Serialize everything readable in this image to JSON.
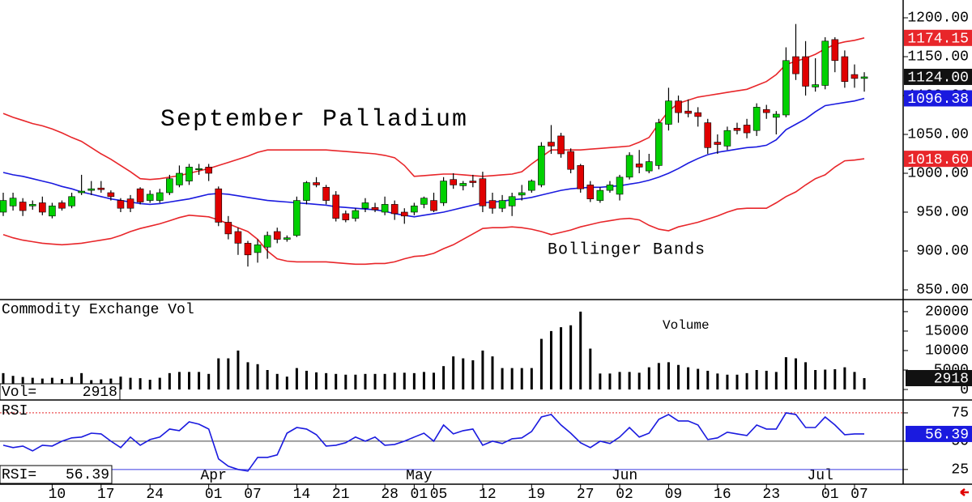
{
  "chart_data": [
    {
      "type": "candlestick",
      "title": "September Palladium",
      "annotation": "Bollinger Bands",
      "categories": [
        null,
        null,
        null,
        null,
        null,
        "10",
        null,
        null,
        null,
        null,
        "17",
        null,
        null,
        null,
        null,
        "24",
        null,
        null,
        null,
        null,
        null,
        "01",
        null,
        null,
        null,
        "07",
        null,
        null,
        null,
        null,
        "14",
        null,
        null,
        null,
        "21",
        null,
        null,
        null,
        null,
        "28",
        null,
        null,
        "01",
        null,
        "05",
        null,
        null,
        null,
        null,
        "12",
        null,
        null,
        null,
        null,
        "19",
        null,
        null,
        null,
        null,
        "27",
        null,
        null,
        null,
        "02",
        null,
        null,
        null,
        null,
        "09",
        null,
        null,
        null,
        null,
        "16",
        null,
        null,
        null,
        null,
        "23",
        null,
        null,
        null,
        null,
        null,
        "01",
        null,
        null,
        "07",
        null
      ],
      "month_labels": [
        null,
        null,
        null,
        null,
        null,
        null,
        null,
        null,
        null,
        null,
        null,
        null,
        null,
        null,
        null,
        null,
        null,
        null,
        null,
        null,
        null,
        "Apr",
        null,
        null,
        null,
        null,
        null,
        null,
        null,
        null,
        null,
        null,
        null,
        null,
        null,
        null,
        null,
        null,
        null,
        null,
        null,
        null,
        "May",
        null,
        null,
        null,
        null,
        null,
        null,
        null,
        null,
        null,
        null,
        null,
        null,
        null,
        null,
        null,
        null,
        null,
        null,
        null,
        null,
        "Jun",
        null,
        null,
        null,
        null,
        null,
        null,
        null,
        null,
        null,
        null,
        null,
        null,
        null,
        null,
        null,
        null,
        null,
        null,
        null,
        "Jul",
        null,
        null,
        null,
        null
      ],
      "open": [
        950,
        958,
        963,
        958,
        962,
        945,
        962,
        958,
        975,
        978,
        981,
        975,
        965,
        967,
        980,
        965,
        965,
        975,
        985,
        990,
        1005,
        1008,
        980,
        937,
        925,
        910,
        898,
        905,
        925,
        915,
        920,
        965,
        988,
        982,
        972,
        948,
        942,
        955,
        956,
        950,
        960,
        950,
        950,
        960,
        965,
        962,
        992,
        984,
        990,
        993,
        965,
        955,
        958,
        972,
        978,
        985,
        1040,
        1048,
        1028,
        1010,
        985,
        965,
        978,
        973,
        995,
        1012,
        1003,
        1010,
        1063,
        1093,
        1080,
        1078,
        1065,
        1040,
        1035,
        1058,
        1062,
        1055,
        1082,
        1072,
        1075,
        1150,
        1150,
        1111,
        1113,
        1172,
        1150,
        1127,
        1122
      ],
      "high": [
        975,
        975,
        968,
        965,
        970,
        962,
        965,
        975,
        998,
        990,
        990,
        978,
        968,
        972,
        982,
        978,
        980,
        998,
        1010,
        1012,
        1012,
        1012,
        983,
        945,
        930,
        913,
        915,
        925,
        930,
        920,
        970,
        990,
        995,
        985,
        977,
        952,
        955,
        968,
        962,
        970,
        965,
        955,
        962,
        970,
        975,
        995,
        1000,
        990,
        998,
        1002,
        975,
        972,
        975,
        985,
        992,
        1040,
        1062,
        1052,
        1032,
        1012,
        990,
        982,
        990,
        998,
        1027,
        1030,
        1025,
        1070,
        1110,
        1100,
        1095,
        1085,
        1070,
        1050,
        1060,
        1065,
        1070,
        1090,
        1088,
        1080,
        1162,
        1192,
        1170,
        1148,
        1175,
        1175,
        1158,
        1140,
        1130
      ],
      "low": [
        945,
        952,
        945,
        953,
        946,
        942,
        952,
        955,
        972,
        972,
        975,
        965,
        950,
        950,
        960,
        962,
        962,
        972,
        982,
        985,
        998,
        990,
        932,
        915,
        895,
        880,
        885,
        890,
        910,
        912,
        918,
        960,
        982,
        960,
        938,
        937,
        938,
        950,
        950,
        946,
        940,
        935,
        946,
        955,
        950,
        958,
        980,
        978,
        982,
        950,
        948,
        950,
        945,
        965,
        975,
        982,
        1025,
        1020,
        1000,
        975,
        963,
        962,
        975,
        965,
        992,
        1000,
        1000,
        1005,
        1055,
        1065,
        1072,
        1060,
        1025,
        1025,
        1030,
        1050,
        1045,
        1048,
        1070,
        1050,
        1072,
        1120,
        1100,
        1105,
        1108,
        1130,
        1110,
        1110,
        1105
      ],
      "close": [
        965,
        968,
        952,
        960,
        950,
        958,
        955,
        970,
        977,
        980,
        979,
        970,
        955,
        955,
        963,
        973,
        975,
        993,
        1000,
        1008,
        1006,
        1000,
        937,
        922,
        910,
        895,
        908,
        920,
        915,
        917,
        965,
        988,
        985,
        965,
        942,
        940,
        952,
        962,
        953,
        960,
        948,
        945,
        958,
        968,
        952,
        990,
        985,
        987,
        988,
        958,
        955,
        965,
        970,
        975,
        990,
        1035,
        1035,
        1025,
        1005,
        980,
        967,
        978,
        985,
        995,
        1023,
        1008,
        1015,
        1065,
        1093,
        1078,
        1077,
        1073,
        1033,
        1037,
        1055,
        1055,
        1052,
        1085,
        1078,
        1076,
        1145,
        1128,
        1112,
        1114,
        1170,
        1145,
        1118,
        1122,
        1124
      ],
      "up_color": "#00d000",
      "down_color": "#e00000",
      "series": [
        {
          "color": "#e8262a",
          "values": [
            1077,
            1072,
            1068,
            1064,
            1061,
            1057,
            1052,
            1046,
            1041,
            1033,
            1025,
            1018,
            1010,
            1002,
            993,
            992,
            993,
            995,
            997,
            1000,
            1003,
            1006,
            1010,
            1014,
            1018,
            1022,
            1027,
            1030,
            1030,
            1030,
            1030,
            1030,
            1030,
            1030,
            1029,
            1028,
            1027,
            1026,
            1025,
            1023,
            1020,
            1010,
            996,
            997,
            998,
            999,
            999,
            998,
            997,
            996,
            997,
            998,
            999,
            1002,
            1012,
            1021,
            1030,
            1030,
            1030,
            1030,
            1031,
            1032,
            1033,
            1034,
            1035,
            1040,
            1046,
            1064,
            1080,
            1090,
            1094,
            1098,
            1100,
            1102,
            1104,
            1106,
            1108,
            1113,
            1118,
            1127,
            1140,
            1144,
            1148,
            1153,
            1160,
            1166,
            1169,
            1171,
            1174.15
          ]
        },
        {
          "color": "#1a1adf",
          "values": [
            1001,
            998,
            996,
            993,
            990,
            987,
            983,
            980,
            976,
            973,
            970,
            967,
            965,
            963,
            961,
            960,
            961,
            963,
            965,
            967,
            970,
            973,
            974,
            973,
            971,
            969,
            967,
            965,
            964,
            963,
            962,
            961,
            960,
            959,
            957,
            956,
            955,
            954,
            953,
            951,
            948,
            946,
            944,
            946,
            948,
            950,
            953,
            956,
            959,
            962,
            963,
            964,
            966,
            967,
            969,
            972,
            975,
            978,
            980,
            981,
            982,
            982,
            983,
            984,
            986,
            988,
            991,
            995,
            1000,
            1006,
            1013,
            1019,
            1024,
            1027,
            1029,
            1031,
            1033,
            1034,
            1036,
            1043,
            1056,
            1063,
            1070,
            1079,
            1087,
            1089,
            1091,
            1093,
            1096.38
          ]
        },
        {
          "color": "#e8262a",
          "values": [
            921,
            917,
            914,
            912,
            910,
            909,
            908,
            909,
            910,
            912,
            914,
            916,
            920,
            925,
            929,
            932,
            935,
            939,
            943,
            946,
            945,
            944,
            940,
            935,
            930,
            925,
            915,
            900,
            890,
            887,
            886,
            886,
            886,
            886,
            885,
            884,
            883,
            883,
            884,
            884,
            886,
            890,
            893,
            894,
            897,
            903,
            908,
            915,
            922,
            929,
            930,
            930,
            931,
            930,
            928,
            925,
            921,
            924,
            927,
            931,
            934,
            937,
            939,
            941,
            942,
            940,
            933,
            928,
            926,
            931,
            934,
            937,
            941,
            945,
            950,
            954,
            955,
            955,
            955,
            962,
            970,
            976,
            985,
            993,
            998,
            1008,
            1016,
            1017,
            1018.6
          ]
        }
      ],
      "flags": [
        {
          "value": 1174.15,
          "label": "1174.15",
          "color": "#e8262a"
        },
        {
          "value": 1124,
          "label": "1124.00",
          "color": "#111111"
        },
        {
          "value": 1096.38,
          "label": "1096.38",
          "color": "#1a1adf"
        },
        {
          "value": 1018.6,
          "label": "1018.60",
          "color": "#e8262a"
        }
      ],
      "ylim": [
        837.5,
        1222.9
      ],
      "yticks": [
        {
          "value": 1200,
          "label": "1200.00"
        },
        {
          "value": 1150,
          "label": "1150.00"
        },
        {
          "value": 1100,
          "label": "1100.00"
        },
        {
          "value": 1050,
          "label": "1050.00"
        },
        {
          "value": 1000,
          "label": "1000.00"
        },
        {
          "value": 950,
          "label": "950.00"
        },
        {
          "value": 900,
          "label": "900.00"
        },
        {
          "value": 850,
          "label": "850.00"
        }
      ]
    },
    {
      "type": "bar",
      "title": "Commodity Exchange Vol",
      "annotation": "Volume",
      "readout_label": "Vol=",
      "color": "#000000",
      "flag_color": "#111111",
      "values": [
        4200,
        3500,
        3200,
        3000,
        2800,
        3000,
        2700,
        3200,
        4200,
        2400,
        2600,
        2800,
        3300,
        3000,
        2900,
        2500,
        3000,
        4200,
        4500,
        4500,
        4500,
        4000,
        8000,
        8000,
        10000,
        7000,
        6500,
        5000,
        4000,
        3300,
        5500,
        4800,
        4400,
        4200,
        4000,
        3800,
        3800,
        4000,
        4000,
        4000,
        4300,
        4300,
        4200,
        4500,
        4300,
        6000,
        8500,
        8000,
        7500,
        10000,
        8500,
        5500,
        5500,
        5500,
        5500,
        13000,
        15000,
        16000,
        16500,
        20000,
        10500,
        4100,
        4100,
        4500,
        4500,
        4300,
        5700,
        6800,
        7000,
        6300,
        5700,
        5300,
        4800,
        4100,
        3800,
        3800,
        4200,
        5000,
        4800,
        4500,
        8300,
        8000,
        7000,
        5000,
        5100,
        5200,
        5700,
        4500,
        2918
      ],
      "ylim": [
        -2700,
        23100
      ],
      "yticks": [
        20000,
        15000,
        10000,
        5000,
        0
      ]
    },
    {
      "type": "line",
      "title": "RSI",
      "readout_label": "RSI=",
      "series": [
        {
          "color": "#1a1adf",
          "values": [
            46.4,
            44.3,
            45.7,
            41.4,
            46.4,
            45.7,
            50,
            52.9,
            53.6,
            57.1,
            56.4,
            50,
            44.3,
            53.6,
            46.4,
            51.4,
            53.6,
            60.7,
            59.3,
            67.1,
            65,
            60.7,
            34.3,
            27.9,
            25,
            23.6,
            35.7,
            35.7,
            37.9,
            57.1,
            62.1,
            60.7,
            55.7,
            45.7,
            46.4,
            48.6,
            53.6,
            50,
            53.6,
            46.4,
            47.1,
            50,
            53.6,
            57.1,
            50,
            64.3,
            56.4,
            59.3,
            60.7,
            46.4,
            50,
            47.9,
            52.1,
            52.9,
            58.6,
            71.4,
            73.6,
            64.3,
            57.1,
            48.6,
            44.3,
            50,
            47.9,
            53.6,
            62.1,
            53.6,
            57.1,
            69.3,
            73.6,
            67.9,
            67.9,
            64.3,
            51.4,
            52.9,
            57.9,
            56.4,
            55,
            64.3,
            60.7,
            60.7,
            75,
            73.6,
            62.1,
            62.1,
            71.4,
            64.3,
            55.7,
            56.4,
            56.39
          ]
        }
      ],
      "ylim": [
        12,
        86.4
      ],
      "yticks": [
        75,
        50,
        25
      ],
      "ytick_colors": [
        "#e8262a",
        "#444444",
        "#3a3ae0"
      ]
    }
  ]
}
